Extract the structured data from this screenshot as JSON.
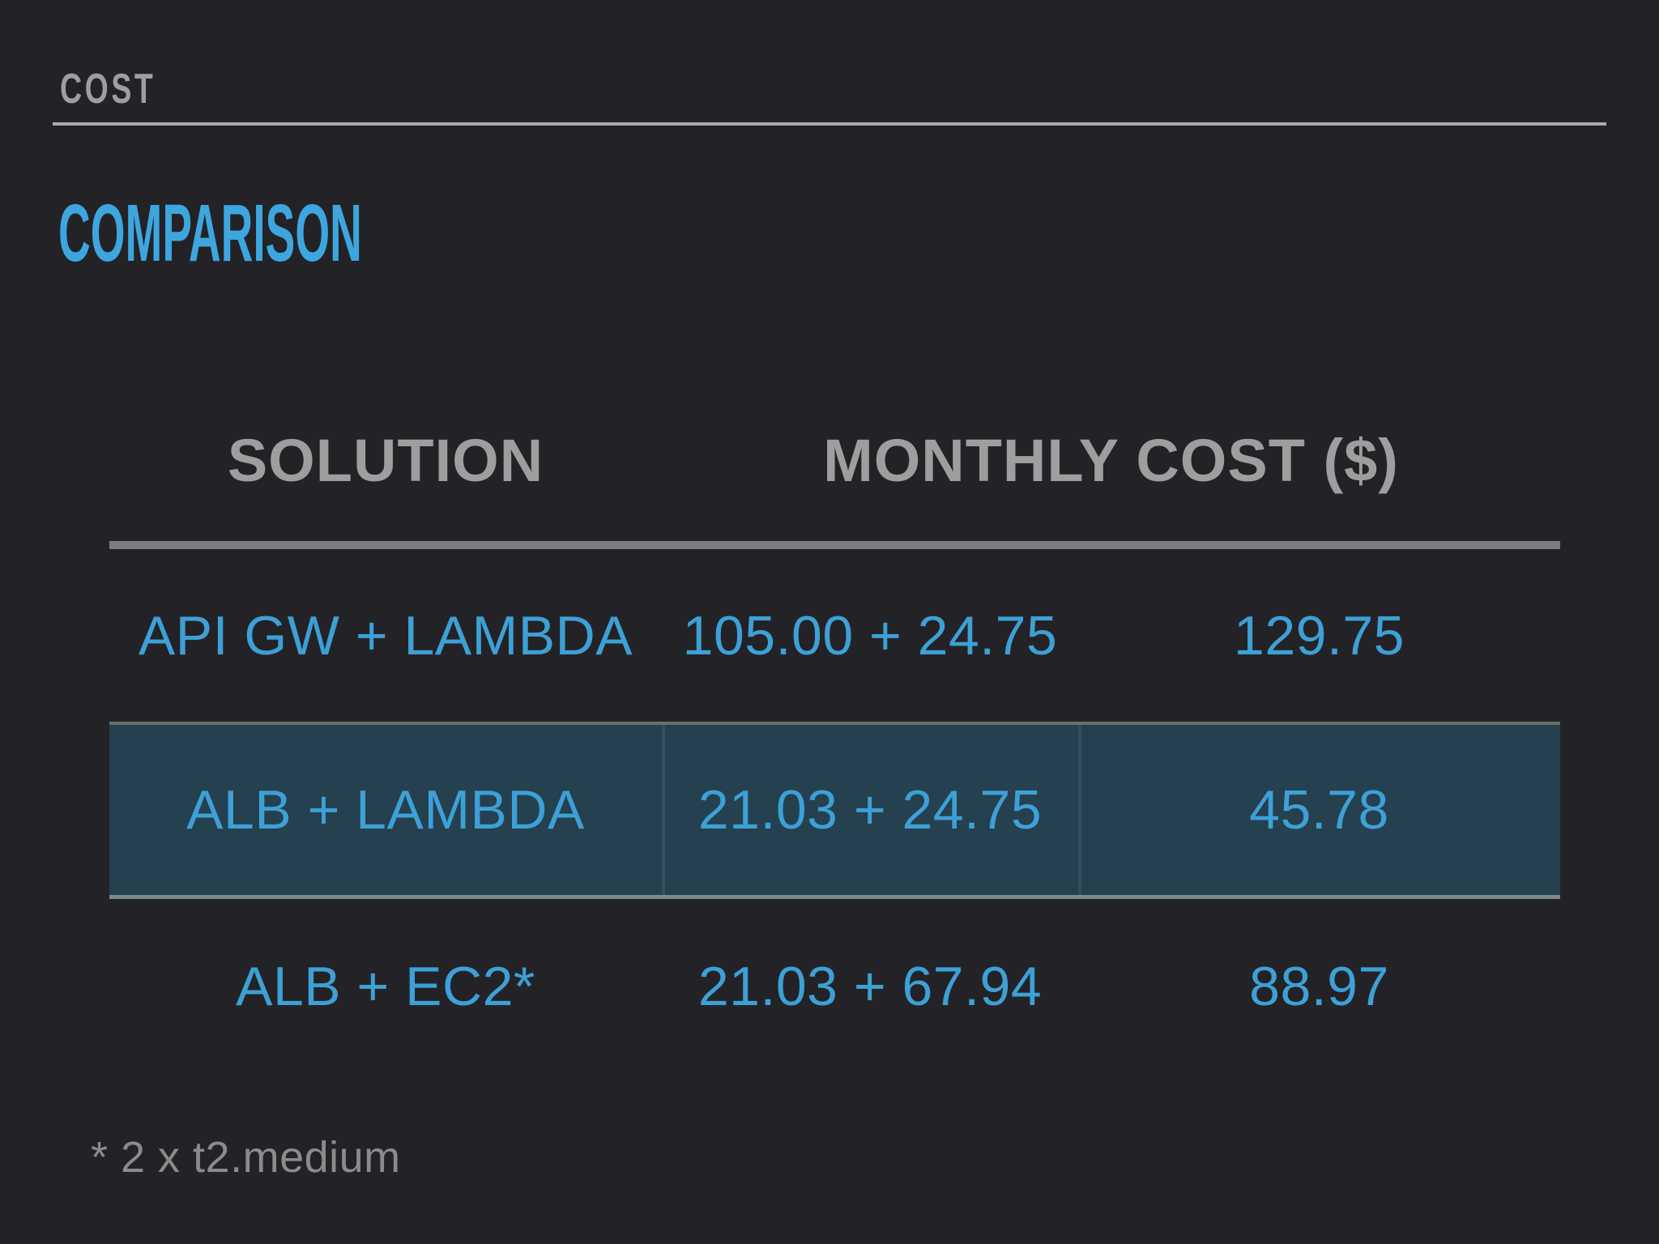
{
  "slide": {
    "kicker": "COST",
    "title": "COMPARISON",
    "footnote": "* 2 x t2.medium"
  },
  "table": {
    "headers": {
      "solution": "SOLUTION",
      "monthly_cost": "MONTHLY COST ($)"
    },
    "rows": [
      {
        "solution": "API GW + LAMBDA",
        "breakdown": "105.00 + 24.75",
        "total": "129.75",
        "highlighted": false
      },
      {
        "solution": "ALB + LAMBDA",
        "breakdown": "21.03 + 24.75",
        "total": "45.78",
        "highlighted": true
      },
      {
        "solution": "ALB + EC2*",
        "breakdown": "21.03 + 67.94",
        "total": "88.97",
        "highlighted": false
      }
    ]
  },
  "colors": {
    "background": "#232327",
    "accent_blue": "#3DA6DE",
    "table_text_blue": "#3DA0D6",
    "muted_gray": "#9E9E9E",
    "footnote_gray": "#8B8B8B",
    "rule_gray": "#ABABAB",
    "divider_gray": "#7D7D7D",
    "highlight_bg": "#25404F"
  }
}
